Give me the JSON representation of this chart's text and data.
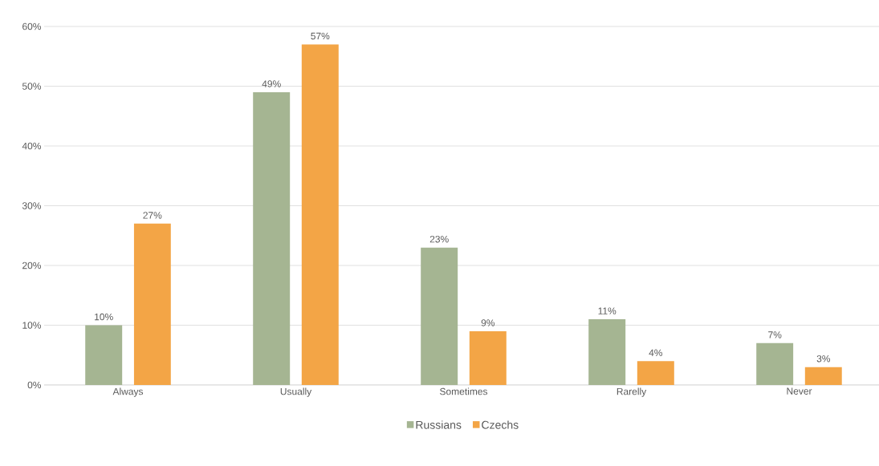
{
  "chart_data": {
    "type": "bar",
    "categories": [
      "Always",
      "Usually",
      "Sometimes",
      "Rarelly",
      "Never"
    ],
    "series": [
      {
        "name": "Russians",
        "color": "#a5b592",
        "values": [
          10,
          49,
          23,
          11,
          7
        ],
        "value_labels": [
          "10%",
          "49%",
          "23%",
          "11%",
          "7%"
        ]
      },
      {
        "name": "Czechs",
        "color": "#f3a546",
        "values": [
          27,
          57,
          9,
          4,
          3
        ],
        "value_labels": [
          "27%",
          "57%",
          "9%",
          "4%",
          "3%"
        ]
      }
    ],
    "ylim": [
      0,
      60
    ],
    "yticks": [
      {
        "value": 0,
        "label": "0%"
      },
      {
        "value": 10,
        "label": "10%"
      },
      {
        "value": 20,
        "label": "20%"
      },
      {
        "value": 30,
        "label": "30%"
      },
      {
        "value": 40,
        "label": "40%"
      },
      {
        "value": 50,
        "label": "50%"
      },
      {
        "value": 60,
        "label": "60%"
      }
    ],
    "grid": "y",
    "legend": "bottom"
  }
}
